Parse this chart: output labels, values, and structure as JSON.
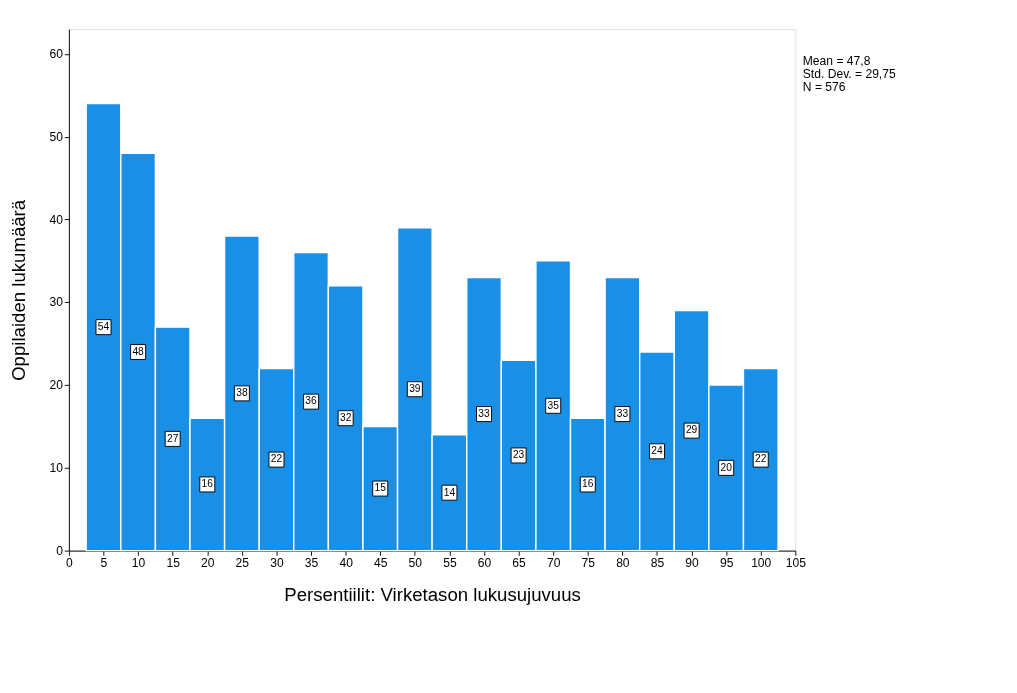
{
  "chart_data": {
    "type": "histogram",
    "xlabel": "Persentiilit: Virketason lukusujuvuus",
    "ylabel": "Oppilaiden lukumäärä",
    "bins": [
      2.5,
      7.5,
      12.5,
      17.5,
      22.5,
      27.5,
      32.5,
      37.5,
      42.5,
      47.5,
      52.5,
      57.5,
      62.5,
      67.5,
      72.5,
      77.5,
      82.5,
      87.5,
      92.5,
      97.5,
      102.5
    ],
    "values": [
      54,
      48,
      27,
      16,
      38,
      22,
      36,
      32,
      15,
      39,
      14,
      33,
      23,
      35,
      16,
      33,
      24,
      29,
      20,
      22
    ],
    "color": "#1990e6",
    "xlim": [
      0,
      105
    ],
    "xticks": [
      0,
      5,
      10,
      15,
      20,
      25,
      30,
      35,
      40,
      45,
      50,
      55,
      60,
      65,
      70,
      75,
      80,
      85,
      90,
      95,
      100,
      105
    ],
    "ylim": [
      0,
      63
    ],
    "yticks": [
      0,
      10,
      20,
      30,
      40,
      50,
      60
    ],
    "grid": false,
    "data_labels": true,
    "annotations": [
      "Mean = 47,8",
      "Std. Dev. = 29,75",
      "N = 576"
    ]
  }
}
